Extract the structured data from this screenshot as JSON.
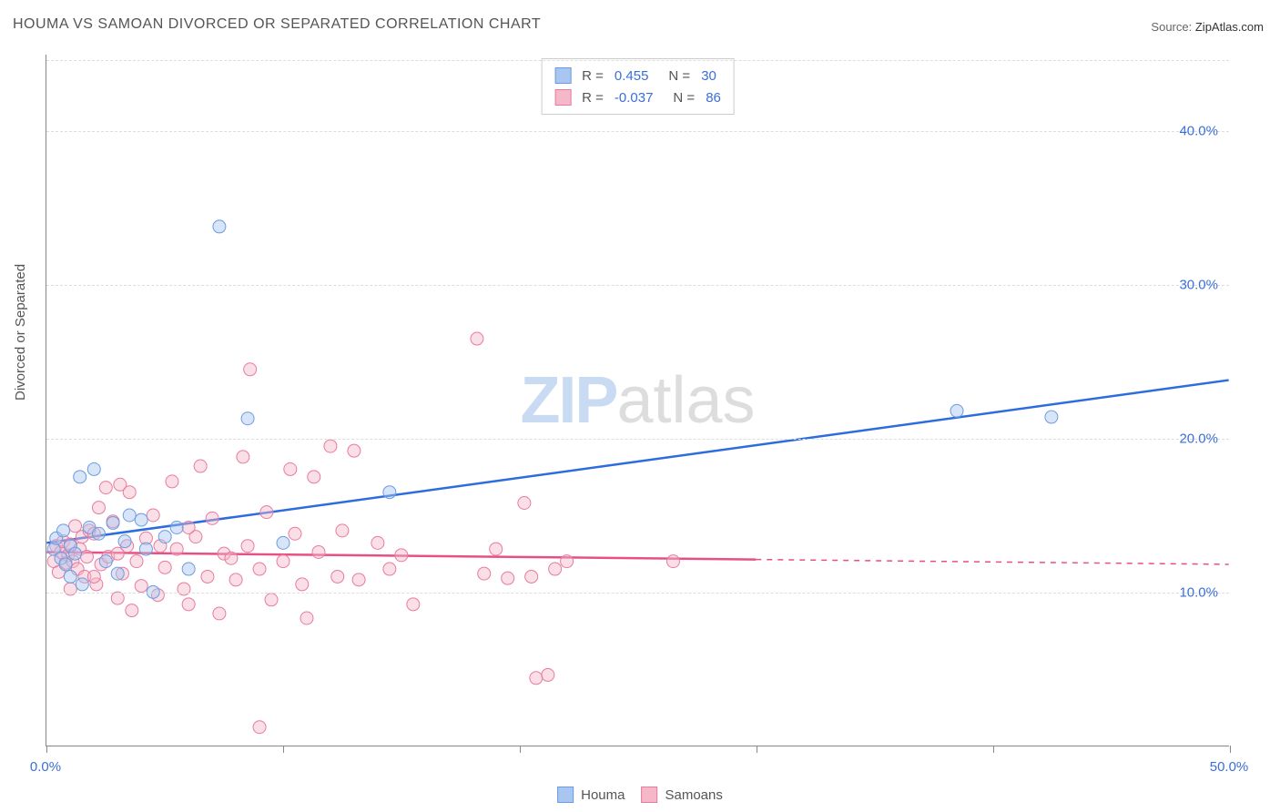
{
  "title": "HOUMA VS SAMOAN DIVORCED OR SEPARATED CORRELATION CHART",
  "source_label": "Source:",
  "source_value": "ZipAtlas.com",
  "yaxis_title": "Divorced or Separated",
  "watermark": {
    "zip": "ZIP",
    "rest": "atlas"
  },
  "chart": {
    "type": "scatter",
    "xlim": [
      0,
      50
    ],
    "ylim": [
      0,
      45
    ],
    "xticks": [
      0,
      10,
      20,
      30,
      40,
      50
    ],
    "xtick_labels": [
      "0.0%",
      "",
      "",
      "",
      "",
      "50.0%"
    ],
    "yticks": [
      10,
      20,
      30,
      40
    ],
    "ytick_labels": [
      "10.0%",
      "20.0%",
      "30.0%",
      "40.0%"
    ],
    "background_color": "#ffffff",
    "grid_color": "#dddddd",
    "marker_radius": 7,
    "marker_opacity": 0.45,
    "line_width": 2.5
  },
  "series": [
    {
      "key": "houma",
      "label": "Houma",
      "color_fill": "#a8c6f0",
      "color_stroke": "#6b9be0",
      "line_color": "#2d6cdf",
      "R": "0.455",
      "N": "30",
      "trend": {
        "x1": 0,
        "y1": 13.2,
        "x2": 50,
        "y2": 23.8,
        "dash_from_x": null
      },
      "points": [
        [
          0.3,
          12.8
        ],
        [
          0.4,
          13.5
        ],
        [
          0.6,
          12.2
        ],
        [
          0.7,
          14.0
        ],
        [
          0.8,
          11.8
        ],
        [
          1.0,
          13.0
        ],
        [
          1.2,
          12.5
        ],
        [
          1.4,
          17.5
        ],
        [
          1.5,
          10.5
        ],
        [
          1.8,
          14.2
        ],
        [
          2.0,
          18.0
        ],
        [
          2.2,
          13.8
        ],
        [
          2.5,
          12.0
        ],
        [
          2.8,
          14.5
        ],
        [
          3.0,
          11.2
        ],
        [
          3.3,
          13.3
        ],
        [
          3.5,
          15.0
        ],
        [
          4.0,
          14.7
        ],
        [
          4.2,
          12.8
        ],
        [
          4.5,
          10.0
        ],
        [
          5.0,
          13.6
        ],
        [
          5.5,
          14.2
        ],
        [
          6.0,
          11.5
        ],
        [
          7.3,
          33.8
        ],
        [
          8.5,
          21.3
        ],
        [
          10.0,
          13.2
        ],
        [
          14.5,
          16.5
        ],
        [
          38.5,
          21.8
        ],
        [
          42.5,
          21.4
        ],
        [
          1.0,
          11.0
        ]
      ]
    },
    {
      "key": "samoans",
      "label": "Samoans",
      "color_fill": "#f5b8c8",
      "color_stroke": "#e87ba0",
      "line_color": "#e84f86",
      "R": "-0.037",
      "N": "86",
      "trend": {
        "x1": 0,
        "y1": 12.6,
        "x2": 50,
        "y2": 11.8,
        "dash_from_x": 30
      },
      "points": [
        [
          0.3,
          12.0
        ],
        [
          0.4,
          13.0
        ],
        [
          0.5,
          11.3
        ],
        [
          0.6,
          12.6
        ],
        [
          0.7,
          13.3
        ],
        [
          0.8,
          11.9
        ],
        [
          0.9,
          12.4
        ],
        [
          1.0,
          13.1
        ],
        [
          1.1,
          12.0
        ],
        [
          1.2,
          14.3
        ],
        [
          1.3,
          11.5
        ],
        [
          1.4,
          12.8
        ],
        [
          1.5,
          13.6
        ],
        [
          1.6,
          11.0
        ],
        [
          1.7,
          12.3
        ],
        [
          1.8,
          14.0
        ],
        [
          2.0,
          13.8
        ],
        [
          2.1,
          10.5
        ],
        [
          2.2,
          15.5
        ],
        [
          2.3,
          11.8
        ],
        [
          2.5,
          16.8
        ],
        [
          2.6,
          12.3
        ],
        [
          2.8,
          14.6
        ],
        [
          3.0,
          9.6
        ],
        [
          3.1,
          17.0
        ],
        [
          3.2,
          11.2
        ],
        [
          3.4,
          13.0
        ],
        [
          3.5,
          16.5
        ],
        [
          3.6,
          8.8
        ],
        [
          3.8,
          12.0
        ],
        [
          4.0,
          10.4
        ],
        [
          4.2,
          13.5
        ],
        [
          4.5,
          15.0
        ],
        [
          4.7,
          9.8
        ],
        [
          5.0,
          11.6
        ],
        [
          5.3,
          17.2
        ],
        [
          5.5,
          12.8
        ],
        [
          5.8,
          10.2
        ],
        [
          6.0,
          9.2
        ],
        [
          6.3,
          13.6
        ],
        [
          6.5,
          18.2
        ],
        [
          6.8,
          11.0
        ],
        [
          7.0,
          14.8
        ],
        [
          7.3,
          8.6
        ],
        [
          7.5,
          12.5
        ],
        [
          8.0,
          10.8
        ],
        [
          8.3,
          18.8
        ],
        [
          8.5,
          13.0
        ],
        [
          8.6,
          24.5
        ],
        [
          9.0,
          11.5
        ],
        [
          9.3,
          15.2
        ],
        [
          9.5,
          9.5
        ],
        [
          10.0,
          12.0
        ],
        [
          10.3,
          18.0
        ],
        [
          10.5,
          13.8
        ],
        [
          10.8,
          10.5
        ],
        [
          11.0,
          8.3
        ],
        [
          11.3,
          17.5
        ],
        [
          11.5,
          12.6
        ],
        [
          12.0,
          19.5
        ],
        [
          12.3,
          11.0
        ],
        [
          12.5,
          14.0
        ],
        [
          13.0,
          19.2
        ],
        [
          13.2,
          10.8
        ],
        [
          14.0,
          13.2
        ],
        [
          14.5,
          11.5
        ],
        [
          15.0,
          12.4
        ],
        [
          15.5,
          9.2
        ],
        [
          18.2,
          26.5
        ],
        [
          18.5,
          11.2
        ],
        [
          19.0,
          12.8
        ],
        [
          19.5,
          10.9
        ],
        [
          20.2,
          15.8
        ],
        [
          20.5,
          11.0
        ],
        [
          20.7,
          4.4
        ],
        [
          21.2,
          4.6
        ],
        [
          21.5,
          11.5
        ],
        [
          22.0,
          12.0
        ],
        [
          26.5,
          12.0
        ],
        [
          9.0,
          1.2
        ],
        [
          3.0,
          12.5
        ],
        [
          4.8,
          13.0
        ],
        [
          6.0,
          14.2
        ],
        [
          7.8,
          12.2
        ],
        [
          2.0,
          11.0
        ],
        [
          1.0,
          10.2
        ]
      ]
    }
  ],
  "legend_top": {
    "R_label": "R =",
    "N_label": "N ="
  },
  "legend_bottom_title": ""
}
